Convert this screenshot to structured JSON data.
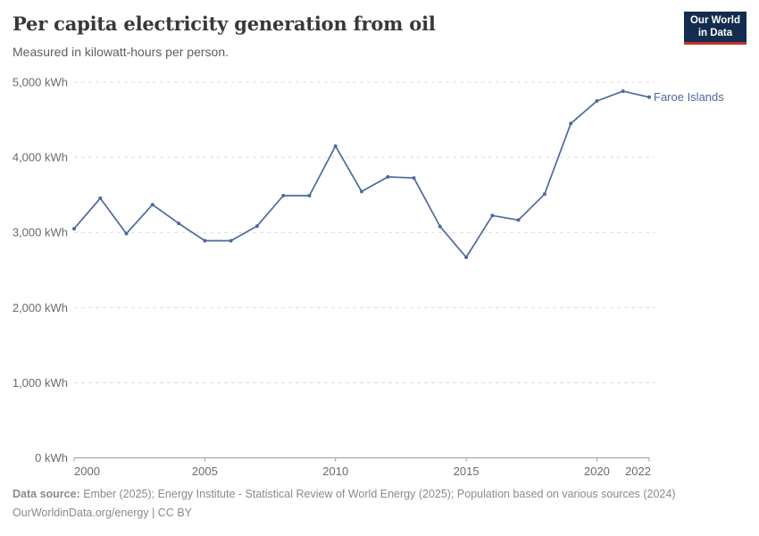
{
  "header": {
    "title": "Per capita electricity generation from oil",
    "subtitle": "Measured in kilowatt-hours per person.",
    "logo": {
      "line1": "Our World",
      "line2": "in Data"
    }
  },
  "chart_data": {
    "type": "line",
    "title": "Per capita electricity generation from oil",
    "unit": "kWh",
    "xlabel": "",
    "ylabel": "kWh",
    "xlim": [
      2000,
      2022
    ],
    "ylim": [
      0,
      5000
    ],
    "grid": "horizontal-dashed",
    "legend_position": "end-of-line-label",
    "xticks": [
      2000,
      2005,
      2010,
      2015,
      2020,
      2022
    ],
    "yticks": [
      {
        "value": 0,
        "label": "0 kWh"
      },
      {
        "value": 1000,
        "label": "1,000 kWh"
      },
      {
        "value": 2000,
        "label": "2,000 kWh"
      },
      {
        "value": 3000,
        "label": "3,000 kWh"
      },
      {
        "value": 4000,
        "label": "4,000 kWh"
      },
      {
        "value": 5000,
        "label": "5,000 kWh"
      }
    ],
    "series": [
      {
        "name": "Faroe Islands",
        "color": "#4C6A9C",
        "x": [
          2000,
          2001,
          2002,
          2003,
          2004,
          2005,
          2006,
          2007,
          2008,
          2009,
          2010,
          2011,
          2012,
          2013,
          2014,
          2015,
          2016,
          2017,
          2018,
          2019,
          2020,
          2021,
          2022
        ],
        "values": [
          3050,
          3455,
          2985,
          3370,
          3120,
          2890,
          2890,
          3085,
          3490,
          3490,
          4150,
          3545,
          3740,
          3725,
          3080,
          2670,
          3225,
          3165,
          3510,
          4450,
          4750,
          4880,
          4800
        ]
      }
    ]
  },
  "footer": {
    "source_label": "Data source:",
    "source_text": " Ember (2025); Energy Institute - Statistical Review of World Energy (2025); Population based on various sources (2024)",
    "license_line": "OurWorldinData.org/energy | CC BY"
  },
  "colors": {
    "series_line": "#4C6A9C",
    "grid": "#dcdcdc",
    "axis": "#9e9e9e",
    "tick_label": "#6b6b6b",
    "title": "#383838",
    "subtitle": "#5f5f5f",
    "footer": "#8a8a8a",
    "logo_bg": "#132C4F",
    "logo_bar": "#C0332E",
    "background": "#ffffff"
  }
}
